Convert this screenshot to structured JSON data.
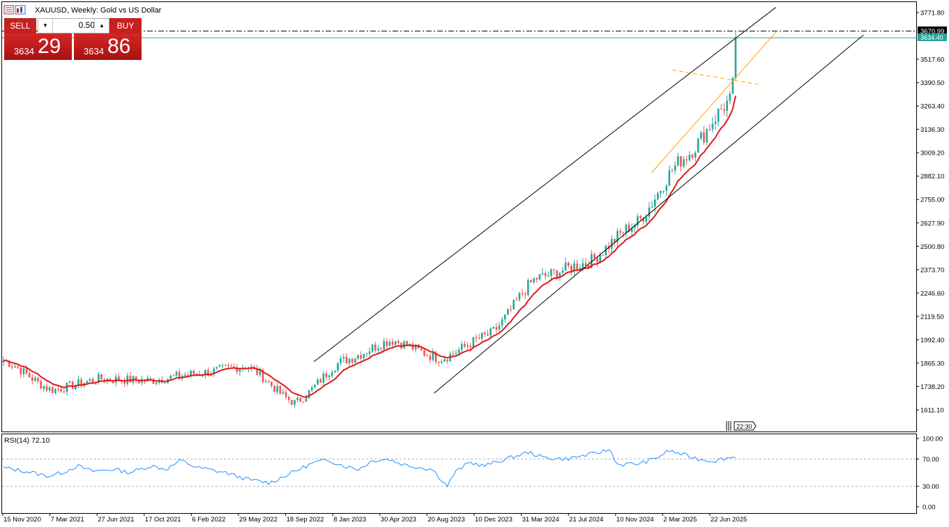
{
  "header": {
    "title": "XAUUSD, Weekly:  Gold vs US Dollar"
  },
  "trade_panel": {
    "sell_label": "SELL",
    "buy_label": "BUY",
    "lot_value": "0.50",
    "bid_small": "3634",
    "bid_big": "29",
    "ask_small": "3634",
    "ask_big": "86"
  },
  "price_tags": {
    "level_line": "3670.99",
    "current_price": "3634.40"
  },
  "time_marker": "22:30",
  "colors": {
    "bull": "#26a69a",
    "bear": "#ef5350",
    "ma": "#e01818",
    "rsi": "#1e90ff",
    "channel": "#000000",
    "trendline": "#ffa500",
    "bid_line": "#26a69a",
    "trade_red": "#c62020"
  },
  "chart_data": [
    {
      "type": "candlestick",
      "title": "XAUUSD, Weekly:  Gold vs US Dollar",
      "y_ticks": [
        "3771.80",
        "3644.70",
        "3517.60",
        "3390.50",
        "3263.40",
        "3136.30",
        "3009.20",
        "2882.10",
        "2755.00",
        "2627.90",
        "2500.80",
        "2373.70",
        "2246.60",
        "2119.50",
        "1992.40",
        "1865.30",
        "1738.20",
        "1611.10"
      ],
      "ylim": [
        1611.1,
        3771.8
      ],
      "x_ticks": [
        "15 Nov 2020",
        "7 Mar 2021",
        "27 Jun 2021",
        "17 Oct 2021",
        "6 Feb 2022",
        "29 May 2022",
        "18 Sep 2022",
        "8 Jan 2023",
        "30 Apr 2023",
        "20 Aug 2023",
        "10 Dec 2023",
        "31 Mar 2024",
        "21 Jul 2024",
        "10 Nov 2024",
        "2 Mar 2025",
        "22 Jun 2025"
      ],
      "series_close_anchors": [
        [
          "15 Nov 2020",
          1880
        ],
        [
          "7 Mar 2021",
          1720
        ],
        [
          "27 Jun 2021",
          1780
        ],
        [
          "17 Oct 2021",
          1770
        ],
        [
          "6 Feb 2022",
          1810
        ],
        [
          "29 May 2022",
          1850
        ],
        [
          "18 Sep 2022",
          1650
        ],
        [
          "8 Jan 2023",
          1880
        ],
        [
          "30 Apr 2023",
          1990
        ],
        [
          "20 Aug 2023",
          1890
        ],
        [
          "10 Dec 2023",
          2020
        ],
        [
          "31 Mar 2024",
          2330
        ],
        [
          "21 Jul 2024",
          2410
        ],
        [
          "10 Nov 2024",
          2620
        ],
        [
          "2 Mar 2025",
          2980
        ],
        [
          "22 Jun 2025",
          3300
        ],
        [
          "last",
          3634.4
        ]
      ],
      "last_price": 3634.4,
      "resistance_level": 3670.99,
      "series": [
        {
          "name": "",
          "kind": "moving-average"
        }
      ],
      "grid": false
    },
    {
      "type": "line",
      "title": "RSI(14) 72.10",
      "y_ticks": [
        "100.00",
        "70.00",
        "30.00",
        "0.00"
      ],
      "ylim": [
        0,
        100
      ],
      "levels": [
        70,
        30
      ],
      "anchors": [
        [
          0,
          57
        ],
        [
          3,
          52
        ],
        [
          6,
          45
        ],
        [
          8,
          50
        ],
        [
          10,
          60
        ],
        [
          12,
          52
        ],
        [
          15,
          55
        ],
        [
          17,
          50
        ],
        [
          20,
          60
        ],
        [
          22,
          55
        ],
        [
          24,
          68
        ],
        [
          26,
          58
        ],
        [
          30,
          50
        ],
        [
          33,
          40
        ],
        [
          36,
          35
        ],
        [
          38,
          45
        ],
        [
          40,
          55
        ],
        [
          42,
          65
        ],
        [
          44,
          68
        ],
        [
          46,
          60
        ],
        [
          48,
          55
        ],
        [
          50,
          68
        ],
        [
          52,
          70
        ],
        [
          54,
          62
        ],
        [
          56,
          58
        ],
        [
          58,
          55
        ],
        [
          60,
          30
        ],
        [
          61,
          50
        ],
        [
          63,
          65
        ],
        [
          65,
          60
        ],
        [
          68,
          70
        ],
        [
          71,
          80
        ],
        [
          73,
          72
        ],
        [
          76,
          70
        ],
        [
          80,
          78
        ],
        [
          82,
          84
        ],
        [
          83,
          62
        ],
        [
          86,
          63
        ],
        [
          88,
          70
        ],
        [
          90,
          82
        ],
        [
          92,
          76
        ],
        [
          94,
          70
        ],
        [
          96,
          67
        ],
        [
          98,
          72
        ],
        [
          99,
          72.1
        ]
      ],
      "last_value": 72.1
    }
  ]
}
